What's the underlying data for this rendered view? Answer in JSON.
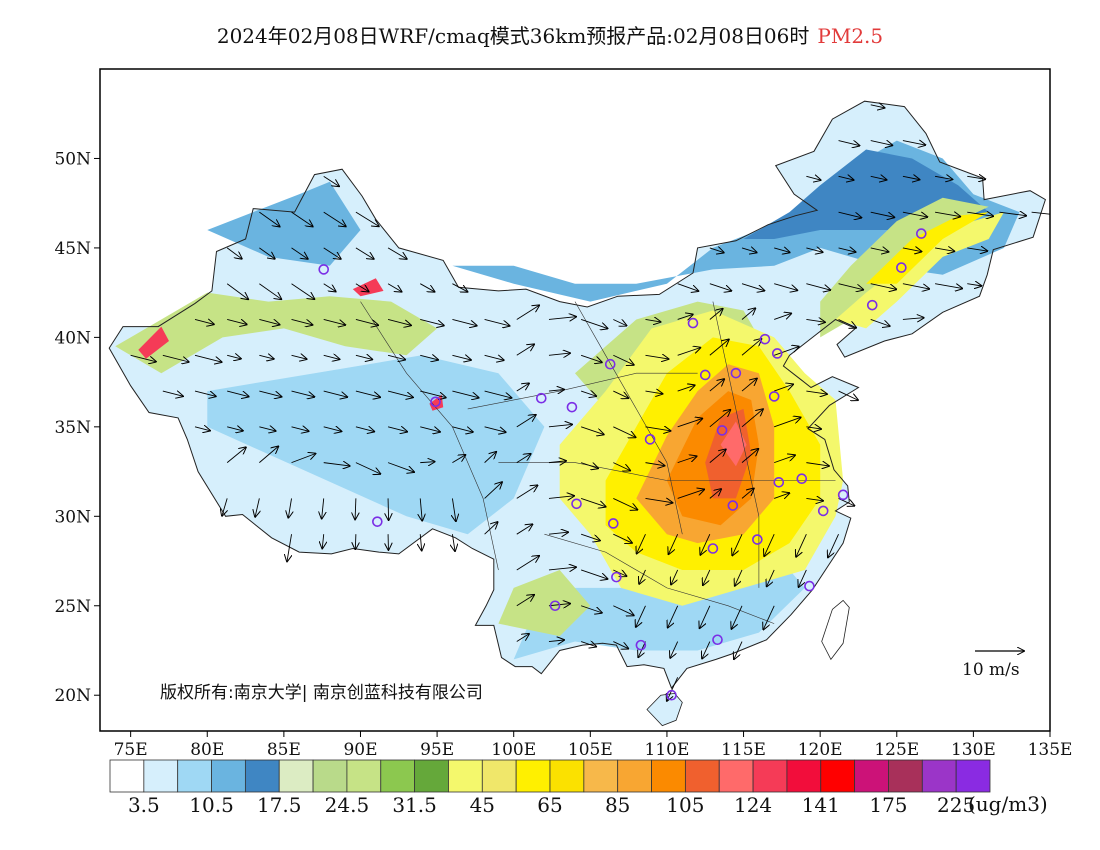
{
  "title": {
    "main": "2024年02月08日WRF/cmaq模式36km预报产品:02月08日06时",
    "pollutant": "PM2.5",
    "pollutant_color": "#e23b3b"
  },
  "copyright": "版权所有:南京大学| 南京创蓝科技有限公司",
  "wind_reference": {
    "label": "10 m/s"
  },
  "axes": {
    "lon_labels": [
      "75E",
      "80E",
      "85E",
      "90E",
      "95E",
      "100E",
      "105E",
      "110E",
      "115E",
      "120E",
      "125E",
      "130E",
      "135E"
    ],
    "lat_labels": [
      "20N",
      "25N",
      "30N",
      "35N",
      "40N",
      "45N",
      "50N"
    ]
  },
  "legend": {
    "units": "(ug/m3)",
    "colors": [
      "#ffffff",
      "#d6effc",
      "#9fd8f4",
      "#6ab4e0",
      "#3f86c3",
      "#dcecc3",
      "#b9da8a",
      "#c6e386",
      "#8cc84f",
      "#65a83a",
      "#f4f86c",
      "#f0e76a",
      "#fff000",
      "#fbe100",
      "#f7b84a",
      "#f8a632",
      "#fb8a00",
      "#f0602e",
      "#ff6a6a",
      "#f53b57",
      "#f20d3b",
      "#ff0000",
      "#cc1278",
      "#a8305a",
      "#9b35c8",
      "#8a2be2"
    ],
    "labels": [
      "3.5",
      "10.5",
      "17.5",
      "24.5",
      "31.5",
      "45",
      "65",
      "85",
      "105",
      "124",
      "141",
      "175",
      "225"
    ]
  },
  "map_meta": {
    "lon_range": [
      73,
      135
    ],
    "lat_range": [
      18,
      55
    ],
    "background": "#ffffff"
  },
  "stations": [
    {
      "lon": 87.6,
      "lat": 43.8
    },
    {
      "lon": 91.1,
      "lat": 29.7
    },
    {
      "lon": 94.9,
      "lat": 36.4
    },
    {
      "lon": 101.8,
      "lat": 36.6
    },
    {
      "lon": 103.8,
      "lat": 36.1
    },
    {
      "lon": 106.3,
      "lat": 38.5
    },
    {
      "lon": 111.7,
      "lat": 40.8
    },
    {
      "lon": 116.4,
      "lat": 39.9
    },
    {
      "lon": 117.2,
      "lat": 39.1
    },
    {
      "lon": 114.5,
      "lat": 38.0
    },
    {
      "lon": 112.5,
      "lat": 37.9
    },
    {
      "lon": 117.0,
      "lat": 36.7
    },
    {
      "lon": 113.6,
      "lat": 34.8
    },
    {
      "lon": 108.9,
      "lat": 34.3
    },
    {
      "lon": 104.1,
      "lat": 30.7
    },
    {
      "lon": 106.5,
      "lat": 29.6
    },
    {
      "lon": 114.3,
      "lat": 30.6
    },
    {
      "lon": 117.3,
      "lat": 31.9
    },
    {
      "lon": 118.8,
      "lat": 32.1
    },
    {
      "lon": 120.2,
      "lat": 30.3
    },
    {
      "lon": 121.5,
      "lat": 31.2
    },
    {
      "lon": 115.9,
      "lat": 28.7
    },
    {
      "lon": 113.0,
      "lat": 28.2
    },
    {
      "lon": 106.7,
      "lat": 26.6
    },
    {
      "lon": 102.7,
      "lat": 25.0
    },
    {
      "lon": 108.3,
      "lat": 22.8
    },
    {
      "lon": 113.3,
      "lat": 23.1
    },
    {
      "lon": 119.3,
      "lat": 26.1
    },
    {
      "lon": 110.3,
      "lat": 20.0
    },
    {
      "lon": 123.4,
      "lat": 41.8
    },
    {
      "lon": 125.3,
      "lat": 43.9
    },
    {
      "lon": 126.6,
      "lat": 45.8
    }
  ]
}
